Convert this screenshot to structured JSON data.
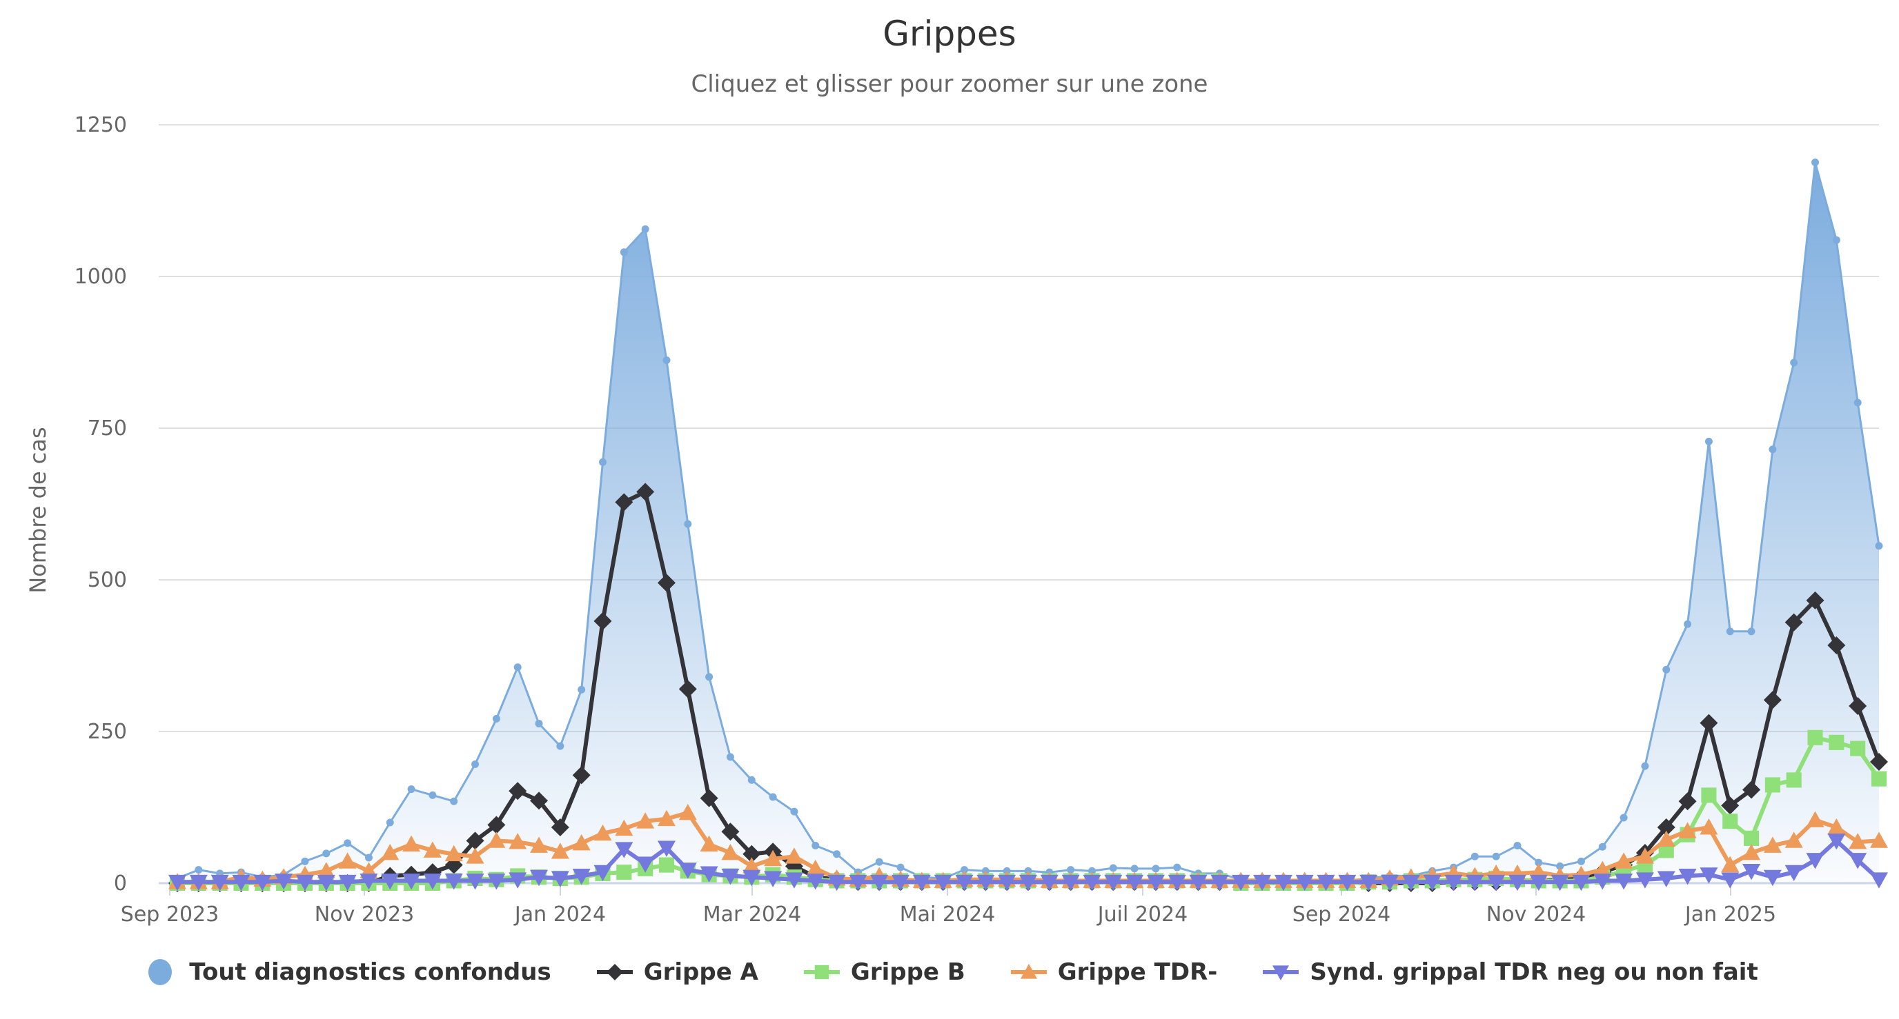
{
  "header": {
    "title": "Grippes",
    "subtitle": "Cliquez et glisser pour zoomer sur une zone"
  },
  "legend": {
    "items": [
      {
        "label": "Tout diagnostics confondus",
        "color": "#7cacde",
        "symbol": "circle"
      },
      {
        "label": "Grippe A",
        "color": "#333338",
        "symbol": "diamond"
      },
      {
        "label": "Grippe B",
        "color": "#90e07a",
        "symbol": "square"
      },
      {
        "label": "Grippe TDR-",
        "color": "#ee9a58",
        "symbol": "triangle"
      },
      {
        "label": "Synd. grippal TDR neg ou non fait",
        "color": "#7479de",
        "symbol": "triangle-down"
      }
    ]
  },
  "chart_data": {
    "type": "line",
    "title": "Grippes",
    "subtitle": "Cliquez et glisser pour zoomer sur une zone",
    "xlabel": "",
    "ylabel": "Nombre de cas",
    "ylim": [
      0,
      1250
    ],
    "y_ticks": [
      0,
      250,
      500,
      750,
      1000,
      1250
    ],
    "x_ticks": [
      "Sep 2023",
      "Nov 2023",
      "Jan 2024",
      "Mar 2024",
      "Mai 2024",
      "Juil 2024",
      "Sep 2024",
      "Nov 2024",
      "Jan 2025"
    ],
    "x_start": "2023-09-04",
    "x_interval": "weekly",
    "grid": true,
    "legend_position": "bottom",
    "series": [
      {
        "name": "Tout diagnostics confondus",
        "type": "area",
        "color": "#7cacde",
        "values": [
          8,
          22,
          16,
          18,
          10,
          14,
          36,
          49,
          66,
          42,
          100,
          155,
          145,
          135,
          196,
          271,
          356,
          263,
          226,
          319,
          694,
          1040,
          1078,
          862,
          592,
          340,
          208,
          170,
          142,
          118,
          62,
          48,
          18,
          35,
          26,
          10,
          8,
          22,
          20,
          20,
          20,
          18,
          22,
          20,
          25,
          24,
          24,
          26,
          16,
          16,
          6,
          6,
          4,
          4,
          4,
          4,
          8,
          12,
          12,
          20,
          26,
          44,
          44,
          62,
          34,
          28,
          36,
          60,
          108,
          193,
          352,
          427,
          728,
          415,
          415,
          715,
          858,
          1188,
          1060,
          792,
          556
        ]
      },
      {
        "name": "Grippe A",
        "type": "line",
        "color": "#333338",
        "values": [
          0,
          0,
          0,
          0,
          0,
          0,
          0,
          0,
          0,
          0,
          12,
          14,
          18,
          30,
          70,
          96,
          152,
          136,
          92,
          178,
          432,
          628,
          645,
          495,
          320,
          140,
          85,
          48,
          52,
          28,
          10,
          6,
          2,
          2,
          2,
          2,
          2,
          2,
          2,
          2,
          2,
          2,
          2,
          2,
          2,
          2,
          2,
          2,
          2,
          2,
          2,
          2,
          2,
          2,
          2,
          2,
          0,
          0,
          0,
          0,
          2,
          2,
          2,
          4,
          4,
          6,
          10,
          18,
          30,
          50,
          92,
          135,
          264,
          128,
          154,
          302,
          430,
          466,
          392,
          292,
          200
        ]
      },
      {
        "name": "Grippe B",
        "type": "line",
        "color": "#90e07a",
        "values": [
          0,
          0,
          0,
          0,
          0,
          0,
          0,
          0,
          0,
          0,
          0,
          0,
          0,
          4,
          8,
          6,
          12,
          10,
          8,
          10,
          16,
          18,
          24,
          30,
          20,
          14,
          12,
          10,
          14,
          10,
          6,
          4,
          4,
          4,
          4,
          4,
          4,
          4,
          4,
          4,
          4,
          4,
          4,
          4,
          4,
          4,
          4,
          4,
          4,
          4,
          0,
          0,
          0,
          0,
          0,
          0,
          2,
          2,
          4,
          4,
          6,
          6,
          8,
          6,
          4,
          4,
          4,
          10,
          20,
          30,
          54,
          80,
          145,
          102,
          74,
          162,
          170,
          240,
          232,
          222,
          172
        ]
      },
      {
        "name": "Grippe TDR-",
        "type": "line",
        "color": "#ee9a58",
        "values": [
          2,
          2,
          2,
          10,
          6,
          10,
          14,
          20,
          36,
          20,
          50,
          64,
          54,
          48,
          44,
          70,
          68,
          62,
          52,
          66,
          82,
          90,
          102,
          106,
          116,
          64,
          50,
          28,
          40,
          44,
          24,
          8,
          6,
          12,
          6,
          4,
          4,
          6,
          6,
          6,
          6,
          4,
          4,
          4,
          4,
          4,
          4,
          4,
          4,
          4,
          4,
          4,
          4,
          4,
          4,
          4,
          4,
          8,
          10,
          12,
          16,
          12,
          16,
          16,
          18,
          12,
          14,
          22,
          36,
          44,
          72,
          86,
          92,
          30,
          50,
          62,
          70,
          104,
          92,
          68,
          70
        ]
      },
      {
        "name": "Synd. grippal TDR neg ou non fait",
        "type": "line",
        "color": "#7479de",
        "values": [
          2,
          2,
          2,
          2,
          2,
          4,
          2,
          2,
          2,
          4,
          4,
          4,
          4,
          4,
          4,
          4,
          6,
          10,
          8,
          12,
          18,
          56,
          32,
          58,
          22,
          16,
          12,
          10,
          8,
          6,
          4,
          2,
          2,
          2,
          2,
          2,
          2,
          2,
          2,
          2,
          2,
          2,
          2,
          2,
          2,
          2,
          2,
          2,
          2,
          2,
          2,
          2,
          2,
          2,
          2,
          2,
          2,
          2,
          2,
          2,
          2,
          2,
          2,
          2,
          2,
          2,
          2,
          4,
          4,
          6,
          8,
          12,
          14,
          6,
          20,
          10,
          18,
          38,
          70,
          38,
          6
        ]
      }
    ]
  }
}
